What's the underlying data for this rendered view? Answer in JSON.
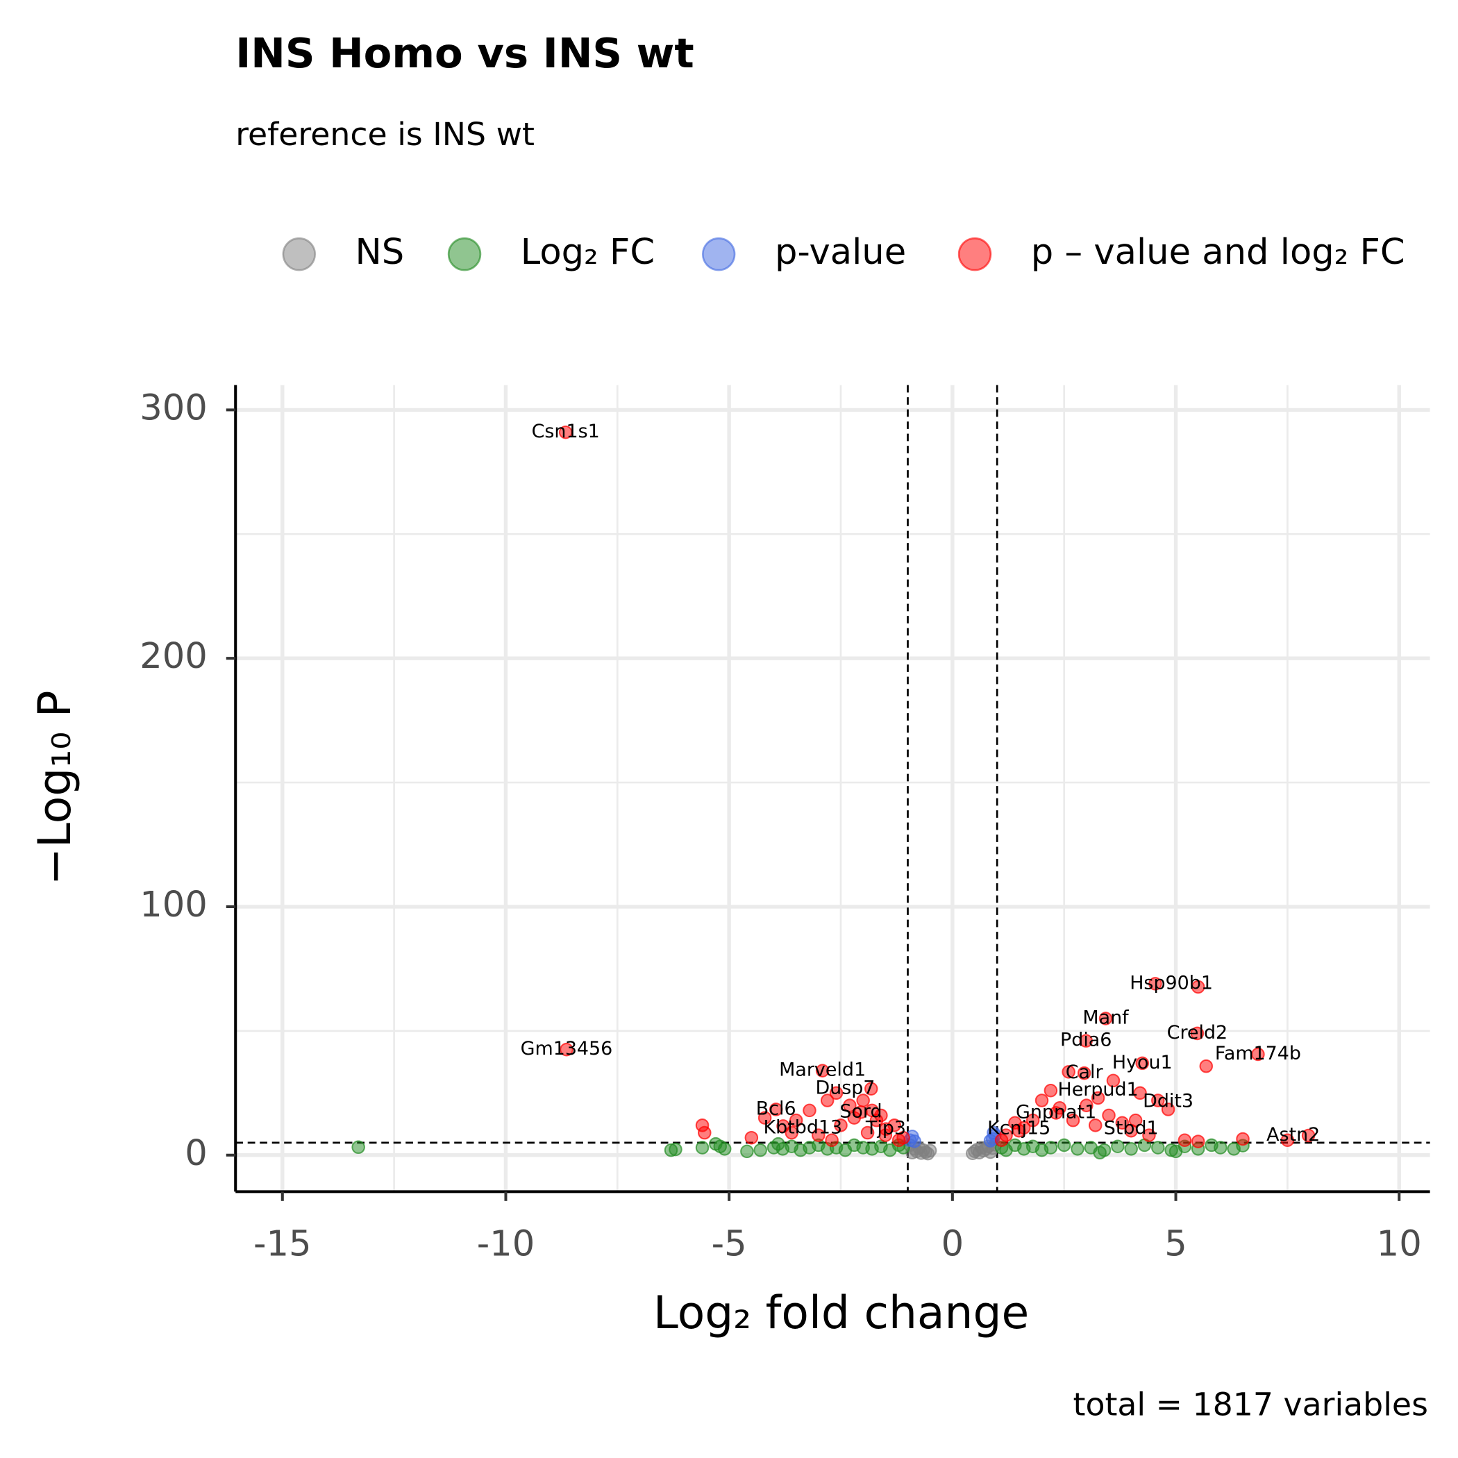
{
  "chart_data": {
    "type": "scatter",
    "title": "INS Homo vs INS wt",
    "subtitle": "reference is INS wt",
    "caption": "total = 1817 variables",
    "x_label": "Log₂ fold change",
    "y_label": "−Log₁₀ P",
    "xlim": [
      -16.05,
      10.69
    ],
    "ylim": [
      -14.7,
      310
    ],
    "xticks": [
      -15,
      -10,
      -5,
      0,
      5,
      10
    ],
    "yticks": [
      0,
      100,
      200,
      300
    ],
    "xminor": [
      -12.5,
      -7.5,
      -2.5,
      2.5,
      7.5
    ],
    "yminor": [
      50,
      150,
      250
    ],
    "grid": true,
    "vlines": [
      -1,
      1
    ],
    "hlines": [
      5
    ],
    "legend": "top",
    "series": [
      {
        "name": "NS",
        "color": "#808080",
        "x": [
          -0.9,
          -0.85,
          -0.8,
          -0.75,
          -0.7,
          -0.65,
          -0.6,
          -0.55,
          -0.5,
          0.45,
          0.5,
          0.55,
          0.6,
          0.65,
          0.7,
          0.75,
          0.8,
          0.85,
          0.9,
          -0.95,
          0.95
        ],
        "values": [
          1,
          2.5,
          1.5,
          3,
          0.8,
          2,
          1.2,
          0.6,
          1.8,
          0.7,
          1.5,
          2.2,
          1,
          3,
          1.8,
          2.5,
          3.5,
          1.2,
          2.8,
          4,
          4.2
        ]
      },
      {
        "name": "Log₂ FC",
        "color": "#228b22",
        "x": [
          -13.3,
          -6.3,
          -6.2,
          -5.6,
          -5.3,
          -5.2,
          -5.1,
          -4.3,
          -4.0,
          -3.8,
          -3.6,
          -3.4,
          -3.2,
          -3.0,
          -2.8,
          -2.6,
          -2.4,
          -2.2,
          -2.0,
          -1.8,
          -1.6,
          -1.4,
          -1.2,
          -1.1,
          1.1,
          1.2,
          1.4,
          1.6,
          1.8,
          2.0,
          2.2,
          2.5,
          2.8,
          3.1,
          3.4,
          3.7,
          4.0,
          4.3,
          4.6,
          4.9,
          5.2,
          5.5,
          5.8,
          6.0,
          6.3,
          6.5,
          -4.6,
          -3.9,
          5.0,
          3.3
        ],
        "values": [
          3.2,
          2,
          2.3,
          3,
          4.5,
          3.5,
          2.5,
          2,
          3,
          2.5,
          3.5,
          2,
          3,
          4,
          2.5,
          3,
          2,
          4,
          3,
          2.5,
          3.5,
          2,
          4,
          3,
          3,
          2,
          4,
          2.5,
          3.5,
          2,
          3,
          4,
          2.5,
          3,
          2,
          3.5,
          2.5,
          4,
          3,
          2,
          3.5,
          2.5,
          4,
          3,
          2.5,
          3.8,
          1.5,
          4.5,
          1.5,
          1
        ]
      },
      {
        "name": "p-value",
        "color": "#4169e1",
        "x": [
          -0.95,
          -0.9,
          -0.85,
          0.9,
          0.95,
          0.85,
          0.92
        ],
        "values": [
          6,
          7.5,
          5.6,
          6.5,
          8,
          5.8,
          9
        ]
      },
      {
        "name": "p – value and log₂ FC",
        "color": "#ff0000",
        "x": [
          -8.66,
          -8.64,
          5.5,
          4.54,
          3.43,
          5.48,
          2.99,
          6.84,
          5.68,
          4.25,
          2.95,
          2.6,
          -2.91,
          -1.82,
          3.26,
          3.6,
          4.83,
          4.2,
          -3.95,
          -2.05,
          2.32,
          1.49,
          4.0,
          -3.79,
          -1.49,
          7.97,
          7.5,
          -5.6,
          -5.55,
          -4.5,
          -4.2,
          -3.5,
          -3.2,
          -3.0,
          -2.8,
          -2.6,
          -2.5,
          -2.3,
          -2.2,
          -2.0,
          -1.9,
          -1.8,
          -1.7,
          -1.6,
          -1.5,
          -1.3,
          -1.2,
          -1.1,
          1.1,
          1.2,
          1.4,
          1.6,
          1.8,
          2.0,
          2.2,
          2.4,
          2.7,
          3.0,
          3.2,
          3.5,
          3.8,
          4.1,
          4.4,
          4.6,
          5.2,
          5.5,
          6.5,
          -2.7,
          -3.6
        ],
        "values": [
          291,
          42.5,
          67.7,
          69,
          55,
          49,
          46,
          40.6,
          35.8,
          37,
          33,
          33.5,
          34,
          26.7,
          23,
          30,
          18.4,
          25,
          18.4,
          17.3,
          17,
          9.8,
          9.8,
          11.7,
          10.5,
          7.9,
          6,
          12,
          9,
          7,
          15,
          14,
          18,
          8,
          22,
          25,
          12,
          20,
          15,
          22,
          9,
          18,
          14,
          16,
          8,
          12,
          6,
          7,
          6,
          8,
          13,
          11,
          14,
          22,
          26,
          19,
          14,
          20,
          12,
          16,
          13,
          14,
          8,
          22,
          6,
          5.5,
          6.5,
          6,
          9
        ]
      }
    ],
    "annotations": [
      {
        "text": "Csn1s1",
        "x": -8.66,
        "y": 291
      },
      {
        "text": "Gm13456",
        "x": -8.64,
        "y": 42.5
      },
      {
        "text": "Hsp90b1",
        "x": 4.9,
        "y": 69
      },
      {
        "text": "Manf",
        "x": 3.43,
        "y": 55
      },
      {
        "text": "Creld2",
        "x": 5.48,
        "y": 49
      },
      {
        "text": "Pdia6",
        "x": 2.99,
        "y": 46
      },
      {
        "text": "Fam174b",
        "x": 6.84,
        "y": 40.6
      },
      {
        "text": "Hyou1",
        "x": 4.25,
        "y": 37
      },
      {
        "text": "Calr",
        "x": 2.95,
        "y": 33
      },
      {
        "text": "Marveld1",
        "x": -2.91,
        "y": 34
      },
      {
        "text": "Dusp7",
        "x": -2.4,
        "y": 26.7
      },
      {
        "text": "Herpud1",
        "x": 3.26,
        "y": 26
      },
      {
        "text": "Ddit3",
        "x": 4.83,
        "y": 21.5
      },
      {
        "text": "Bcl6",
        "x": -3.95,
        "y": 18.4
      },
      {
        "text": "Sord",
        "x": -2.05,
        "y": 17.3
      },
      {
        "text": "Gnpnat1",
        "x": 2.32,
        "y": 17
      },
      {
        "text": "Kcnj15",
        "x": 1.49,
        "y": 10.5
      },
      {
        "text": "Stbd1",
        "x": 4.0,
        "y": 10.5
      },
      {
        "text": "Kbtbd13",
        "x": -3.35,
        "y": 10.9
      },
      {
        "text": "Tjp3",
        "x": -1.49,
        "y": 10.5
      },
      {
        "text": "Astn2",
        "x": 7.63,
        "y": 7.9
      }
    ]
  }
}
